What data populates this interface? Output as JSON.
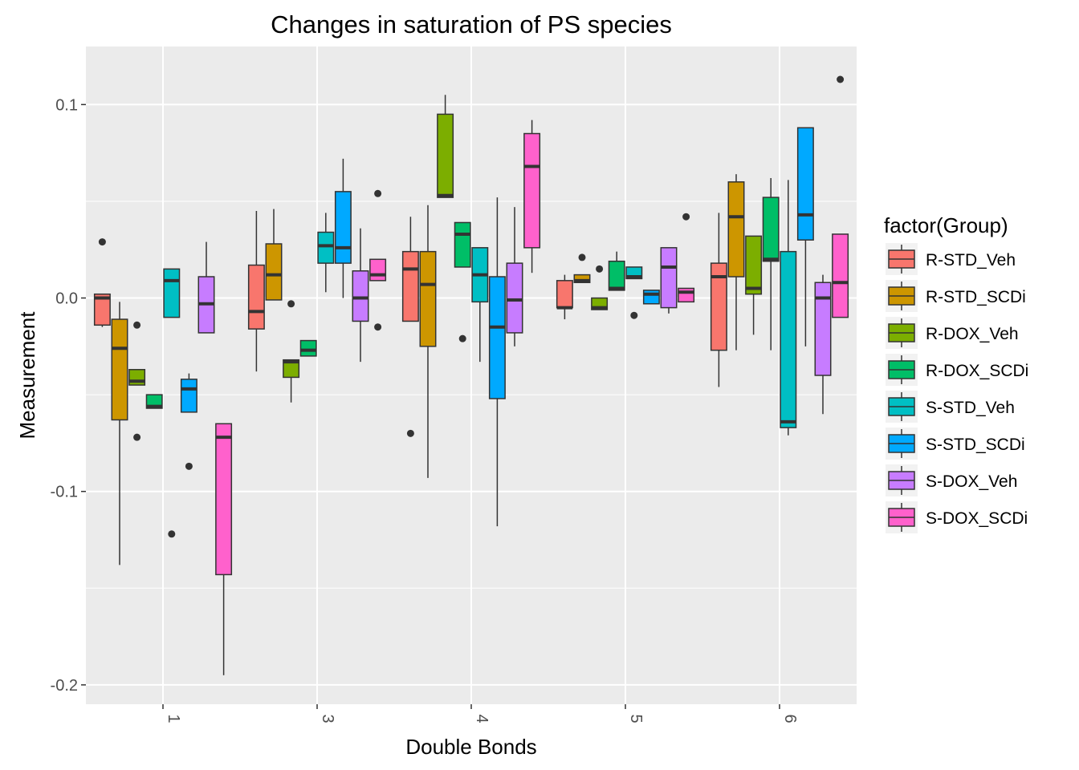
{
  "chart_data": {
    "type": "boxplot",
    "title": "Changes in saturation of PS species",
    "xlabel": "Double Bonds",
    "ylabel": "Measurement",
    "categories": [
      "1",
      "3",
      "4",
      "5",
      "6"
    ],
    "ylim": [
      -0.21,
      0.13
    ],
    "yticks": [
      {
        "value": 0.1,
        "label": "0.1"
      },
      {
        "value": 0.0,
        "label": "0.0"
      },
      {
        "value": -0.1,
        "label": "-0.1"
      },
      {
        "value": -0.2,
        "label": "-0.2"
      }
    ],
    "grid": true,
    "legend_title": "factor(Group)",
    "legend_position": "right",
    "series": [
      {
        "name": "R-STD_Veh",
        "color": "#F8766D",
        "boxes": [
          {
            "category": "1",
            "whislo": -0.015,
            "q1": -0.014,
            "median": 0.0,
            "q3": 0.002,
            "whishi": 0.002,
            "fliers": [
              0.029
            ]
          },
          {
            "category": "3",
            "whislo": -0.038,
            "q1": -0.016,
            "median": -0.007,
            "q3": 0.017,
            "whishi": 0.045,
            "fliers": []
          },
          {
            "category": "4",
            "whislo": -0.012,
            "q1": -0.012,
            "median": 0.015,
            "q3": 0.024,
            "whishi": 0.042,
            "fliers": [
              -0.07
            ]
          },
          {
            "category": "5",
            "whislo": -0.011,
            "q1": -0.005,
            "median": -0.005,
            "q3": 0.009,
            "whishi": 0.012,
            "fliers": []
          },
          {
            "category": "6",
            "whislo": -0.046,
            "q1": -0.027,
            "median": 0.011,
            "q3": 0.018,
            "whishi": 0.044,
            "fliers": []
          }
        ]
      },
      {
        "name": "R-STD_SCDi",
        "color": "#CD9600",
        "boxes": [
          {
            "category": "1",
            "whislo": -0.138,
            "q1": -0.063,
            "median": -0.026,
            "q3": -0.011,
            "whishi": -0.002,
            "fliers": []
          },
          {
            "category": "3",
            "whislo": -0.001,
            "q1": -0.001,
            "median": 0.012,
            "q3": 0.028,
            "whishi": 0.046,
            "fliers": []
          },
          {
            "category": "4",
            "whislo": -0.093,
            "q1": -0.025,
            "median": 0.007,
            "q3": 0.024,
            "whishi": 0.048,
            "fliers": []
          },
          {
            "category": "5",
            "whislo": 0.008,
            "q1": 0.008,
            "median": 0.009,
            "q3": 0.012,
            "whishi": 0.012,
            "fliers": [
              0.021
            ]
          },
          {
            "category": "6",
            "whislo": -0.027,
            "q1": 0.011,
            "median": 0.042,
            "q3": 0.06,
            "whishi": 0.064,
            "fliers": []
          }
        ]
      },
      {
        "name": "R-DOX_Veh",
        "color": "#7CAE00",
        "boxes": [
          {
            "category": "1",
            "whislo": -0.045,
            "q1": -0.045,
            "median": -0.043,
            "q3": -0.037,
            "whishi": -0.037,
            "fliers": [
              -0.014,
              -0.072
            ]
          },
          {
            "category": "3",
            "whislo": -0.054,
            "q1": -0.041,
            "median": -0.033,
            "q3": -0.032,
            "whishi": -0.032,
            "fliers": [
              -0.003
            ]
          },
          {
            "category": "4",
            "whislo": 0.052,
            "q1": 0.052,
            "median": 0.053,
            "q3": 0.095,
            "whishi": 0.105,
            "fliers": []
          },
          {
            "category": "5",
            "whislo": -0.006,
            "q1": -0.006,
            "median": -0.005,
            "q3": 0.0,
            "whishi": 0.0,
            "fliers": [
              0.015
            ]
          },
          {
            "category": "6",
            "whislo": -0.019,
            "q1": 0.002,
            "median": 0.005,
            "q3": 0.032,
            "whishi": 0.032,
            "fliers": []
          }
        ]
      },
      {
        "name": "R-DOX_SCDi",
        "color": "#00BE67",
        "boxes": [
          {
            "category": "1",
            "whislo": -0.057,
            "q1": -0.057,
            "median": -0.056,
            "q3": -0.05,
            "whishi": -0.05,
            "fliers": []
          },
          {
            "category": "3",
            "whislo": -0.03,
            "q1": -0.03,
            "median": -0.027,
            "q3": -0.022,
            "whishi": -0.022,
            "fliers": []
          },
          {
            "category": "4",
            "whislo": 0.016,
            "q1": 0.016,
            "median": 0.033,
            "q3": 0.039,
            "whishi": 0.039,
            "fliers": [
              -0.021
            ]
          },
          {
            "category": "5",
            "whislo": 0.004,
            "q1": 0.004,
            "median": 0.005,
            "q3": 0.019,
            "whishi": 0.024,
            "fliers": []
          },
          {
            "category": "6",
            "whislo": -0.027,
            "q1": 0.019,
            "median": 0.02,
            "q3": 0.052,
            "whishi": 0.062,
            "fliers": []
          }
        ]
      },
      {
        "name": "S-STD_Veh",
        "color": "#00BFC4",
        "boxes": [
          {
            "category": "1",
            "whislo": -0.01,
            "q1": -0.01,
            "median": 0.009,
            "q3": 0.015,
            "whishi": 0.015,
            "fliers": [
              -0.122
            ]
          },
          {
            "category": "3",
            "whislo": 0.003,
            "q1": 0.018,
            "median": 0.027,
            "q3": 0.034,
            "whishi": 0.044,
            "fliers": []
          },
          {
            "category": "4",
            "whislo": -0.033,
            "q1": -0.002,
            "median": 0.012,
            "q3": 0.026,
            "whishi": 0.026,
            "fliers": []
          },
          {
            "category": "5",
            "whislo": 0.01,
            "q1": 0.01,
            "median": 0.011,
            "q3": 0.016,
            "whishi": 0.016,
            "fliers": [
              -0.009
            ]
          },
          {
            "category": "6",
            "whislo": -0.071,
            "q1": -0.067,
            "median": -0.064,
            "q3": 0.024,
            "whishi": 0.061,
            "fliers": []
          }
        ]
      },
      {
        "name": "S-STD_SCDi",
        "color": "#00A9FF",
        "boxes": [
          {
            "category": "1",
            "whislo": -0.059,
            "q1": -0.059,
            "median": -0.047,
            "q3": -0.042,
            "whishi": -0.039,
            "fliers": [
              -0.087
            ]
          },
          {
            "category": "3",
            "whislo": 0.0,
            "q1": 0.018,
            "median": 0.026,
            "q3": 0.055,
            "whishi": 0.072,
            "fliers": []
          },
          {
            "category": "4",
            "whislo": -0.118,
            "q1": -0.052,
            "median": -0.015,
            "q3": 0.011,
            "whishi": 0.052,
            "fliers": []
          },
          {
            "category": "5",
            "whislo": -0.003,
            "q1": -0.003,
            "median": 0.002,
            "q3": 0.004,
            "whishi": 0.004,
            "fliers": []
          },
          {
            "category": "6",
            "whislo": -0.025,
            "q1": 0.03,
            "median": 0.043,
            "q3": 0.088,
            "whishi": 0.088,
            "fliers": []
          }
        ]
      },
      {
        "name": "S-DOX_Veh",
        "color": "#C77CFF",
        "boxes": [
          {
            "category": "1",
            "whislo": -0.018,
            "q1": -0.018,
            "median": -0.003,
            "q3": 0.011,
            "whishi": 0.029,
            "fliers": []
          },
          {
            "category": "3",
            "whislo": -0.033,
            "q1": -0.012,
            "median": 0.0,
            "q3": 0.014,
            "whishi": 0.036,
            "fliers": []
          },
          {
            "category": "4",
            "whislo": -0.025,
            "q1": -0.018,
            "median": -0.001,
            "q3": 0.018,
            "whishi": 0.047,
            "fliers": []
          },
          {
            "category": "5",
            "whislo": -0.008,
            "q1": -0.005,
            "median": 0.016,
            "q3": 0.026,
            "whishi": 0.026,
            "fliers": []
          },
          {
            "category": "6",
            "whislo": -0.06,
            "q1": -0.04,
            "median": 0.0,
            "q3": 0.008,
            "whishi": 0.012,
            "fliers": []
          }
        ]
      },
      {
        "name": "S-DOX_SCDi",
        "color": "#FF61CC",
        "boxes": [
          {
            "category": "1",
            "whislo": -0.195,
            "q1": -0.143,
            "median": -0.072,
            "q3": -0.065,
            "whishi": -0.065,
            "fliers": []
          },
          {
            "category": "3",
            "whislo": 0.009,
            "q1": 0.009,
            "median": 0.012,
            "q3": 0.02,
            "whishi": 0.02,
            "fliers": [
              0.054,
              -0.015
            ]
          },
          {
            "category": "4",
            "whislo": 0.013,
            "q1": 0.026,
            "median": 0.068,
            "q3": 0.085,
            "whishi": 0.092,
            "fliers": []
          },
          {
            "category": "5",
            "whislo": -0.002,
            "q1": -0.002,
            "median": 0.003,
            "q3": 0.005,
            "whishi": 0.005,
            "fliers": [
              0.042
            ]
          },
          {
            "category": "6",
            "whislo": -0.01,
            "q1": -0.01,
            "median": 0.008,
            "q3": 0.033,
            "whishi": 0.033,
            "fliers": [
              0.113
            ]
          }
        ]
      }
    ]
  }
}
